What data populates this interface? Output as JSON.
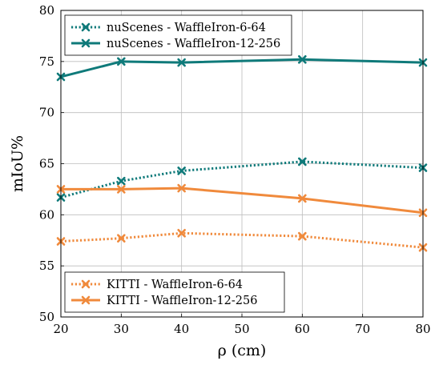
{
  "chart_data": {
    "type": "line",
    "title": "",
    "xlabel": "ρ (cm)",
    "ylabel": "mIoU%",
    "xlim": [
      20,
      80
    ],
    "ylim": [
      50,
      80
    ],
    "xticks": [
      20,
      30,
      40,
      50,
      60,
      70,
      80
    ],
    "yticks": [
      50,
      55,
      60,
      65,
      70,
      75,
      80
    ],
    "grid": true,
    "x": [
      20,
      30,
      40,
      60,
      80
    ],
    "series": [
      {
        "name": "nuScenes - WaffleIron-6-64",
        "values": [
          61.7,
          63.3,
          64.3,
          65.2,
          64.6
        ],
        "color": "#0f7a7a",
        "style": "dotted",
        "legend": "top-left"
      },
      {
        "name": "nuScenes - WaffleIron-12-256",
        "values": [
          73.5,
          75.0,
          74.9,
          75.2,
          74.9
        ],
        "color": "#0f7a7a",
        "style": "solid",
        "legend": "top-left"
      },
      {
        "name": "KITTI - WaffleIron-6-64",
        "values": [
          57.4,
          57.7,
          58.2,
          57.9,
          56.8
        ],
        "color": "#f08a3c",
        "style": "dotted",
        "legend": "bottom-left"
      },
      {
        "name": "KITTI - WaffleIron-12-256",
        "values": [
          62.5,
          62.5,
          62.6,
          61.6,
          60.2
        ],
        "color": "#f08a3c",
        "style": "solid",
        "legend": "bottom-left"
      }
    ]
  }
}
